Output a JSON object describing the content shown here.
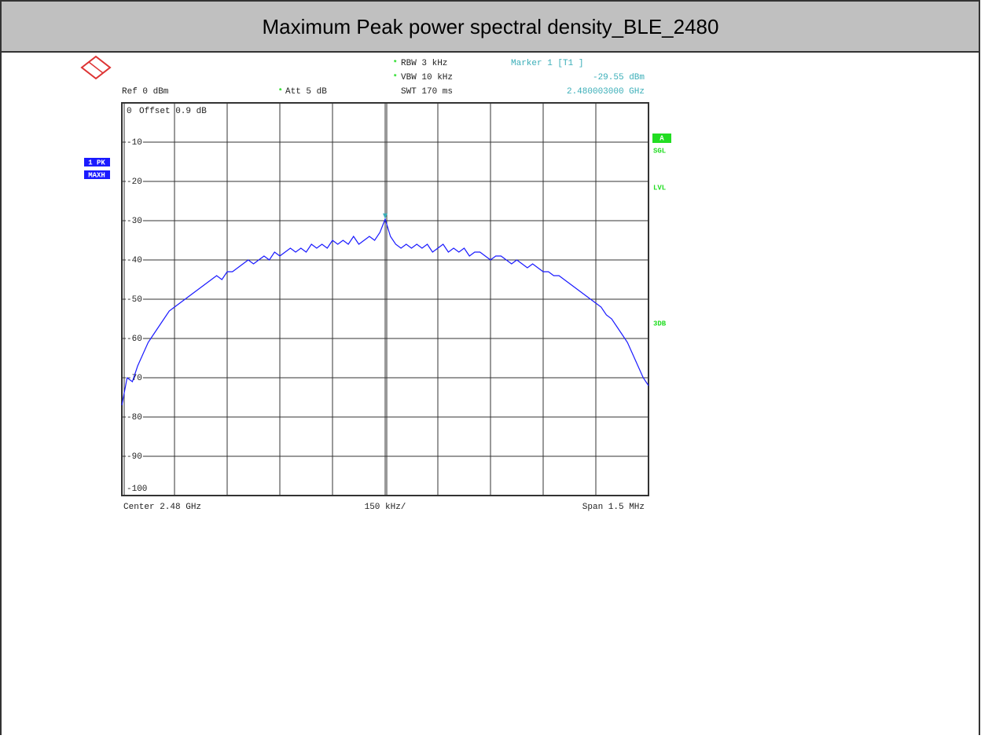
{
  "chart_data": {
    "type": "line",
    "title": "Maximum Peak power spectral density_BLE_2480",
    "ref_level": "Ref  0 dBm",
    "offset": "Offset  0.9 dB",
    "attenuation": "Att  5 dB",
    "rbw": "RBW 3 kHz",
    "vbw": "VBW 10 kHz",
    "sweep_time": "SWT 170 ms",
    "marker": {
      "name": "Marker 1 [T1 ]",
      "value": -29.55,
      "value_label": "-29.55 dBm",
      "frequency": "2.480003000 GHz"
    },
    "trace_labels": [
      "1 PK",
      "MAXH"
    ],
    "side_labels": [
      "A",
      "SGL",
      "LVL",
      "3DB"
    ],
    "center": "Center 2.48 GHz",
    "division": "150 kHz/",
    "span": "Span 1.5 MHz",
    "color": "#1a1aff",
    "values": [
      -77,
      -70,
      -71,
      -67,
      -64,
      -61,
      -59,
      -57,
      -55,
      -53,
      -52,
      -51,
      -50,
      -49,
      -48,
      -47,
      -46,
      -45,
      -44,
      -45,
      -43,
      -43,
      -42,
      -41,
      -40,
      -41,
      -40,
      -39,
      -40,
      -38,
      -39,
      -38,
      -37,
      -38,
      -37,
      -38,
      -36,
      -37,
      -36,
      -37,
      -35,
      -36,
      -35,
      -36,
      -34,
      -36,
      -35,
      -34,
      -35,
      -33,
      -29.6,
      -34,
      -36,
      -37,
      -36,
      -37,
      -36,
      -37,
      -36,
      -38,
      -37,
      -36,
      -38,
      -37,
      -38,
      -37,
      -39,
      -38,
      -38,
      -39,
      -40,
      -39,
      -39,
      -40,
      -41,
      -40,
      -41,
      -42,
      -41,
      -42,
      -43,
      -43,
      -44,
      -44,
      -45,
      -46,
      -47,
      -48,
      -49,
      -50,
      -51,
      -52,
      -54,
      -55,
      -57,
      -59,
      -61,
      -64,
      -67,
      -70,
      -72
    ],
    "ylim": [
      -100,
      0
    ],
    "yticks": [
      0,
      -10,
      -20,
      -30,
      -40,
      -50,
      -60,
      -70,
      -80,
      -90,
      -100
    ],
    "grid": true
  }
}
